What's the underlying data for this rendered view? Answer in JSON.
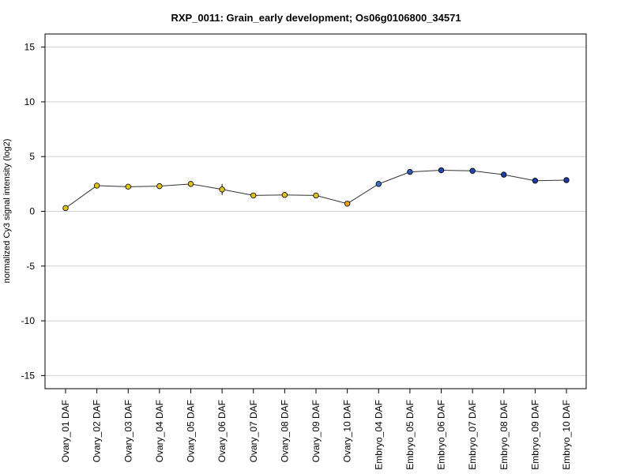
{
  "chart_data": {
    "type": "line",
    "title": "RXP_0011: Grain_early development; Os06g0106800_34571",
    "xlabel": "",
    "ylabel": "normalized Cy3 signal intensity (log2)",
    "ylim": [
      -16.2,
      16.2
    ],
    "yticks": [
      -15,
      -10,
      -5,
      0,
      5,
      10,
      15
    ],
    "grid": true,
    "categories": [
      "Ovary_01 DAF",
      "Ovary_02 DAF",
      "Ovary_03 DAF",
      "Ovary_04 DAF",
      "Ovary_05 DAF",
      "Ovary_06 DAF",
      "Ovary_07 DAF",
      "Ovary_08 DAF",
      "Ovary_09 DAF",
      "Ovary_10 DAF",
      "Embryo_04 DAF",
      "Embryo_05 DAF",
      "Embryo_06 DAF",
      "Embryo_07 DAF",
      "Embryo_08 DAF",
      "Embryo_09 DAF",
      "Embryo_10 DAF"
    ],
    "values": [
      0.3,
      2.35,
      2.25,
      2.3,
      2.5,
      2.0,
      1.45,
      1.5,
      1.45,
      0.7,
      2.5,
      3.6,
      3.75,
      3.7,
      3.35,
      2.8,
      2.85
    ],
    "errors": [
      0.1,
      0.15,
      0.05,
      0.05,
      0.15,
      0.5,
      0.05,
      0.05,
      0.1,
      0.05,
      0.05,
      0.05,
      0.05,
      0.05,
      0.05,
      0.2,
      0.05
    ],
    "point_colors": [
      "#e0c21c",
      "#e0c21c",
      "#e0c21c",
      "#e0c21c",
      "#e0c21c",
      "#e0c21c",
      "#e0c21c",
      "#e0c21c",
      "#e0c21c",
      "#e8a020",
      "#3a70c0",
      "#2a5cb8",
      "#1e49b0",
      "#1e49b0",
      "#1a3fa8",
      "#1a3aa8",
      "#1a38a8"
    ],
    "colors": {
      "line": "#333333",
      "grid": "#d0d0d0"
    }
  }
}
